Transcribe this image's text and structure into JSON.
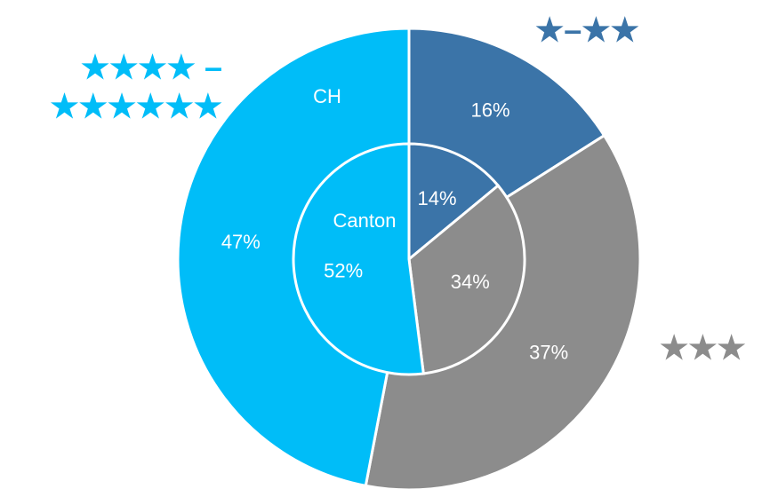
{
  "chart_data": {
    "type": "nested-pie",
    "categories": [
      "★–★★",
      "★★★",
      "★★★★ – ★★★★★★"
    ],
    "colors": [
      "#3b74a8",
      "#8c8c8c",
      "#00bdf8"
    ],
    "series": [
      {
        "name": "CH",
        "values": [
          16,
          37,
          47
        ],
        "value_labels": [
          "16%",
          "37%",
          "47%"
        ]
      },
      {
        "name": "Canton",
        "values": [
          14,
          34,
          52
        ],
        "value_labels": [
          "14%",
          "34%",
          "52%"
        ]
      }
    ]
  }
}
